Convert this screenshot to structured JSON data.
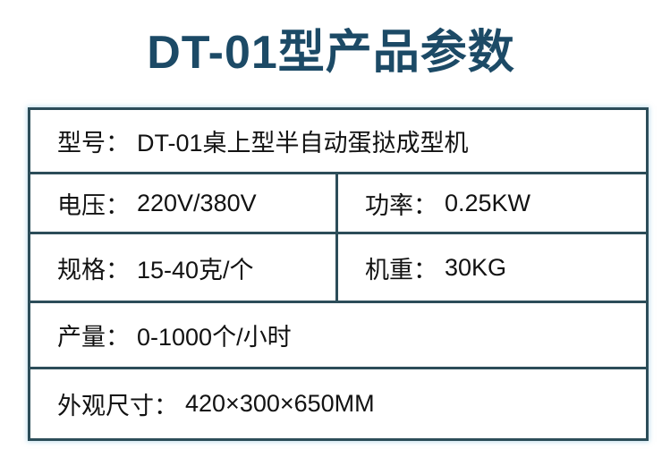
{
  "title": "DT-01型产品参数",
  "colors": {
    "title": "#1c4a66",
    "border": "#2c4d59",
    "text": "#121212",
    "background": "#ffffff"
  },
  "spec_table": {
    "model": {
      "label": "型号：",
      "value": "DT-01桌上型半自动蛋挞成型机"
    },
    "voltage": {
      "label": "电压：",
      "value": "220V/380V"
    },
    "power": {
      "label": "功率：",
      "value": "0.25KW"
    },
    "spec": {
      "label": "规格：",
      "value": "15-40克/个"
    },
    "weight": {
      "label": "机重：",
      "value": "30KG"
    },
    "output": {
      "label": "产量：",
      "value": "0-1000个/小时"
    },
    "dimensions": {
      "label": "外观尺寸：",
      "value": "420×300×650MM"
    }
  }
}
